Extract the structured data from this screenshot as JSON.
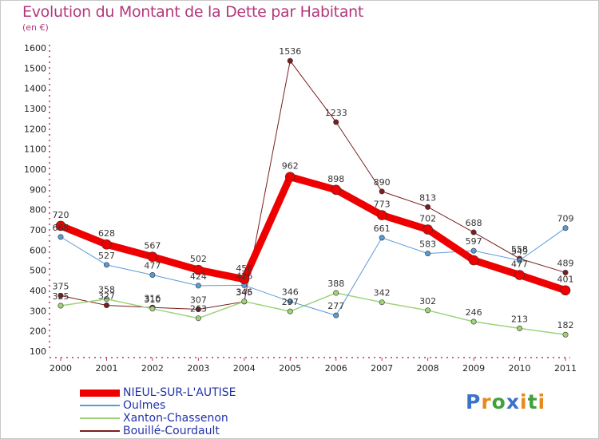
{
  "title": "Evolution du Montant de la Dette par Habitant",
  "unit": "(en €)",
  "logo": {
    "text": "Proxiti",
    "letters": [
      {
        "ch": "P",
        "color": "#3a73c8"
      },
      {
        "ch": "r",
        "color": "#e58a1e"
      },
      {
        "ch": "o",
        "color": "#43a13c"
      },
      {
        "ch": "x",
        "color": "#3a73c8"
      },
      {
        "ch": "i",
        "color": "#e58a1e"
      },
      {
        "ch": "t",
        "color": "#43a13c"
      },
      {
        "ch": "i",
        "color": "#e58a1e"
      }
    ]
  },
  "chart_data": {
    "type": "line",
    "x": [
      "2000",
      "2001",
      "2002",
      "2003",
      "2004",
      "2005",
      "2006",
      "2007",
      "2008",
      "2009",
      "2010",
      "2011"
    ],
    "ylim": [
      100,
      1600
    ],
    "yticks": [
      100,
      200,
      300,
      400,
      500,
      600,
      700,
      800,
      900,
      1000,
      1100,
      1200,
      1300,
      1400,
      1500,
      1600
    ],
    "grid": false,
    "legend_position": "bottom-left",
    "series": [
      {
        "name": "Bouillé-Courdault",
        "color": "#7a1e1e",
        "width": 1,
        "marker": 3.2,
        "values": [
          375,
          327,
          316,
          307,
          345,
          1536,
          1233,
          890,
          813,
          688,
          558,
          489
        ]
      },
      {
        "name": "Xanton-Chassenon",
        "color": "#9ed37a",
        "width": 1.5,
        "marker": 3.2,
        "values": [
          325,
          358,
          310,
          263,
          346,
          297,
          388,
          342,
          302,
          246,
          213,
          182
        ]
      },
      {
        "name": "Oulmes",
        "color": "#5b9bd5",
        "width": 1,
        "marker": 3.2,
        "values": [
          665,
          527,
          477,
          424,
          426,
          346,
          277,
          661,
          583,
          597,
          549,
          709
        ]
      },
      {
        "name": "NIEUL-SUR-L'AUTISE",
        "color": "#ee0000",
        "width": 9,
        "marker": 6,
        "values": [
          720,
          628,
          567,
          502,
          456,
          962,
          898,
          773,
          702,
          550,
          477,
          401
        ]
      }
    ],
    "data_labels": [
      {
        "series": "NIEUL-SUR-L'AUTISE",
        "labels": [
          "720",
          "628",
          "567",
          "502",
          "456",
          "962",
          "898",
          "773",
          "702",
          "",
          "477",
          "401"
        ]
      },
      {
        "series": "Oulmes",
        "labels": [
          "665",
          "527",
          "477",
          "424",
          "426",
          "346",
          "277",
          "661",
          "583",
          "597",
          "549",
          "709"
        ]
      },
      {
        "series": "Xanton-Chassenon",
        "labels": [
          "325",
          "358",
          "310",
          "263",
          "346",
          "297",
          "388",
          "342",
          "302",
          "246",
          "213",
          "182"
        ]
      },
      {
        "series": "Bouillé-Courdault",
        "labels": [
          "375",
          "327",
          "316",
          "307",
          "345",
          "1536",
          "1233",
          "890",
          "813",
          "688",
          "558",
          "489"
        ]
      }
    ]
  },
  "legend": [
    {
      "name": "NIEUL-SUR-L'AUTISE",
      "color": "#ee0000",
      "thickness": 9
    },
    {
      "name": "Oulmes",
      "color": "#5b9bd5",
      "thickness": 2
    },
    {
      "name": "Xanton-Chassenon",
      "color": "#9ed37a",
      "thickness": 2
    },
    {
      "name": "Bouillé-Courdault",
      "color": "#7a1e1e",
      "thickness": 2
    }
  ]
}
